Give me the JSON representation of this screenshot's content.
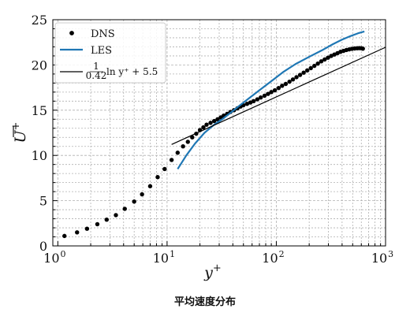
{
  "caption": "平均速度分布",
  "chart_data": {
    "type": "line",
    "title": "",
    "xlabel": "y+",
    "ylabel": "U+",
    "xscale": "log",
    "xlim": [
      0.9,
      1000
    ],
    "ylim": [
      0,
      25
    ],
    "grid": true,
    "legend_placement": "top-left",
    "x_ticks": [
      {
        "base": "10",
        "exp": "0",
        "value": 1
      },
      {
        "base": "10",
        "exp": "1",
        "value": 10
      },
      {
        "base": "10",
        "exp": "2",
        "value": 100
      },
      {
        "base": "10",
        "exp": "3",
        "value": 1000
      }
    ],
    "y_ticks": [
      0,
      5,
      10,
      15,
      20,
      25
    ],
    "series": [
      {
        "name": "DNS",
        "style": "markers",
        "color": "#000000",
        "x": [
          1.15,
          1.5,
          1.85,
          2.3,
          2.8,
          3.4,
          4.1,
          5.0,
          5.9,
          7.0,
          8.2,
          9.5,
          11.0,
          12.5,
          14.0,
          15.5,
          17.0,
          18.5,
          20.0,
          21.5,
          23.0,
          25.0,
          27.0,
          29.0,
          31.0,
          33.0,
          35.5,
          38.0,
          41.0,
          44.0,
          47.0,
          50.0,
          54.0,
          58.0,
          62.0,
          67.0,
          72.0,
          78.0,
          84.0,
          90.0,
          97.0,
          105.0,
          113.0,
          122.0,
          132.0,
          142.0,
          153.0,
          165.0,
          178.0,
          192.0,
          207.0,
          223.0,
          240.0,
          258.0,
          277.0,
          297.0,
          318.0,
          340.0,
          363.0,
          387.0,
          412.0,
          438.0,
          465.0,
          493.0,
          522.0,
          550.0,
          575.0,
          600.0,
          620.0
        ],
        "y": [
          1.1,
          1.5,
          1.9,
          2.4,
          2.9,
          3.4,
          4.1,
          4.9,
          5.7,
          6.6,
          7.6,
          8.5,
          9.5,
          10.3,
          11.0,
          11.5,
          12.0,
          12.4,
          12.8,
          13.1,
          13.4,
          13.6,
          13.8,
          14.0,
          14.2,
          14.4,
          14.6,
          14.8,
          15.0,
          15.2,
          15.4,
          15.55,
          15.7,
          15.85,
          16.0,
          16.2,
          16.4,
          16.6,
          16.8,
          17.0,
          17.2,
          17.45,
          17.7,
          17.9,
          18.15,
          18.4,
          18.65,
          18.9,
          19.15,
          19.4,
          19.65,
          19.9,
          20.15,
          20.4,
          20.6,
          20.8,
          21.0,
          21.15,
          21.3,
          21.45,
          21.55,
          21.65,
          21.72,
          21.78,
          21.82,
          21.85,
          21.86,
          21.85,
          21.8
        ]
      },
      {
        "name": "LES",
        "style": "line",
        "color": "#1f77b4",
        "x": [
          12.5,
          15.0,
          18.0,
          22.0,
          27.0,
          32.0,
          38.0,
          46.0,
          56.0,
          70.0,
          90.0,
          115.0,
          150.0,
          200.0,
          260.0,
          330.0,
          400.0,
          480.0,
          560.0,
          640.0
        ],
        "y": [
          8.5,
          10.0,
          11.3,
          12.5,
          13.4,
          14.0,
          14.7,
          15.5,
          16.3,
          17.2,
          18.2,
          19.2,
          20.1,
          20.9,
          21.6,
          22.3,
          22.8,
          23.2,
          23.5,
          23.7
        ]
      },
      {
        "name": "1/0.42 ln y+ + 5.5",
        "style": "line",
        "color": "#000000",
        "x": [
          11.0,
          1000.0
        ],
        "y": [
          11.21,
          21.95
        ]
      }
    ],
    "legend": {
      "entries": [
        {
          "series": "DNS",
          "label": "DNS"
        },
        {
          "series": "LES",
          "label": "LES"
        },
        {
          "series": "loglaw",
          "num": "1",
          "den": "0.42",
          "tail": "ln y⁺ + 5.5"
        }
      ]
    }
  }
}
